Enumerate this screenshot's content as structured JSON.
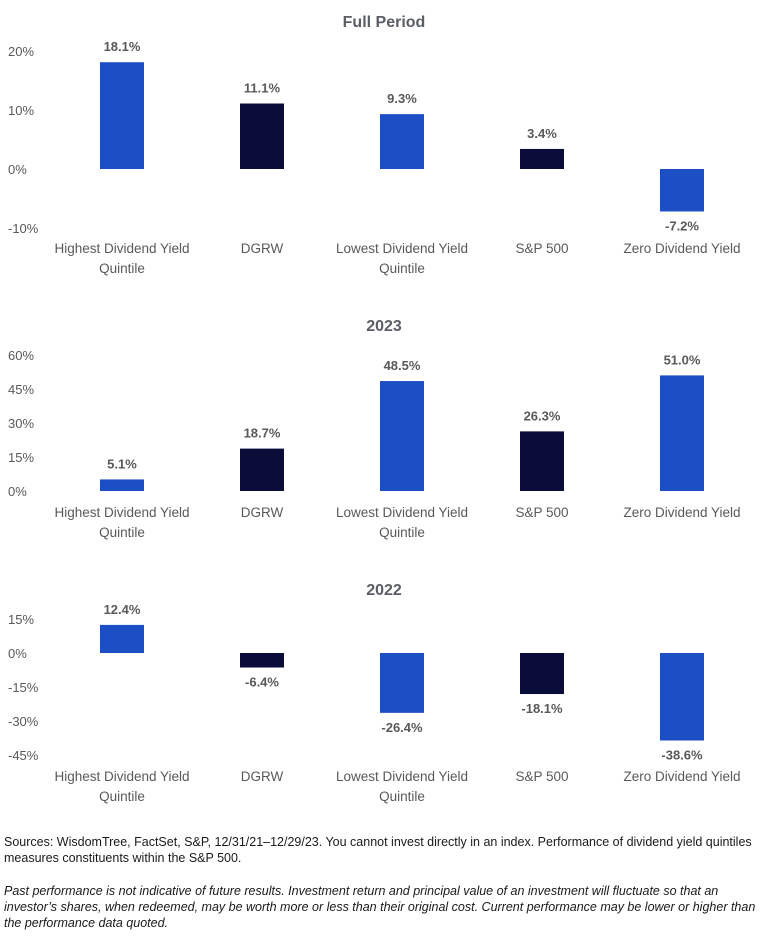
{
  "colors": {
    "blue": "#1c4fc4",
    "navy": "#0a0c3a",
    "text": "#595959"
  },
  "chart_data": [
    {
      "type": "bar",
      "title": "Full Period",
      "categories": [
        [
          "Highest Dividend Yield",
          "Quintile"
        ],
        [
          "DGRW"
        ],
        [
          "Lowest Dividend Yield",
          "Quintile"
        ],
        [
          "S&P 500"
        ],
        [
          "Zero Dividend Yield"
        ]
      ],
      "values": [
        18.1,
        11.1,
        9.3,
        3.4,
        -7.2
      ],
      "data_labels": [
        "18.1%",
        "11.1%",
        "9.3%",
        "3.4%",
        "-7.2%"
      ],
      "bar_colors": [
        "#1c4fc4",
        "#0a0c3a",
        "#1c4fc4",
        "#0a0c3a",
        "#1c4fc4"
      ],
      "ylim": [
        -10,
        20
      ],
      "yticks": [
        20,
        10,
        0,
        -10
      ],
      "ytick_labels": [
        "20%",
        "10%",
        "0%",
        "-10%"
      ],
      "grid": false,
      "legend": "none"
    },
    {
      "type": "bar",
      "title": "2023",
      "categories": [
        [
          "Highest Dividend Yield",
          "Quintile"
        ],
        [
          "DGRW"
        ],
        [
          "Lowest Dividend Yield",
          "Quintile"
        ],
        [
          "S&P 500"
        ],
        [
          "Zero Dividend Yield"
        ]
      ],
      "values": [
        5.1,
        18.7,
        48.5,
        26.3,
        51.0
      ],
      "data_labels": [
        "5.1%",
        "18.7%",
        "48.5%",
        "26.3%",
        "51.0%"
      ],
      "bar_colors": [
        "#1c4fc4",
        "#0a0c3a",
        "#1c4fc4",
        "#0a0c3a",
        "#1c4fc4"
      ],
      "ylim": [
        0,
        60
      ],
      "yticks": [
        60,
        45,
        30,
        15,
        0
      ],
      "ytick_labels": [
        "60%",
        "45%",
        "30%",
        "15%",
        "0%"
      ],
      "grid": false,
      "legend": "none"
    },
    {
      "type": "bar",
      "title": "2022",
      "categories": [
        [
          "Highest Dividend Yield",
          "Quintile"
        ],
        [
          "DGRW"
        ],
        [
          "Lowest Dividend Yield",
          "Quintile"
        ],
        [
          "S&P 500"
        ],
        [
          "Zero Dividend Yield"
        ]
      ],
      "values": [
        12.4,
        -6.4,
        -26.4,
        -18.1,
        -38.6
      ],
      "data_labels": [
        "12.4%",
        "-6.4%",
        "-26.4%",
        "-18.1%",
        "-38.6%"
      ],
      "bar_colors": [
        "#1c4fc4",
        "#0a0c3a",
        "#1c4fc4",
        "#0a0c3a",
        "#1c4fc4"
      ],
      "ylim": [
        -45,
        15
      ],
      "yticks": [
        15,
        0,
        -15,
        -30,
        -45
      ],
      "ytick_labels": [
        "15%",
        "0%",
        "-15%",
        "-30%",
        "-45%"
      ],
      "grid": false,
      "legend": "none"
    }
  ],
  "footnotes": {
    "sources": "Sources: WisdomTree, FactSet, S&P, 12/31/21–12/29/23. You cannot invest directly in an index. Performance of dividend yield quintiles measures constituents within the S&P 500.",
    "disclaimer": "Past performance is not indicative of future results. Investment return and principal value of an investment will fluctuate so that an investor’s shares, when redeemed, may be worth more or less than their original cost. Current performance may be lower or higher than the performance data quoted."
  }
}
